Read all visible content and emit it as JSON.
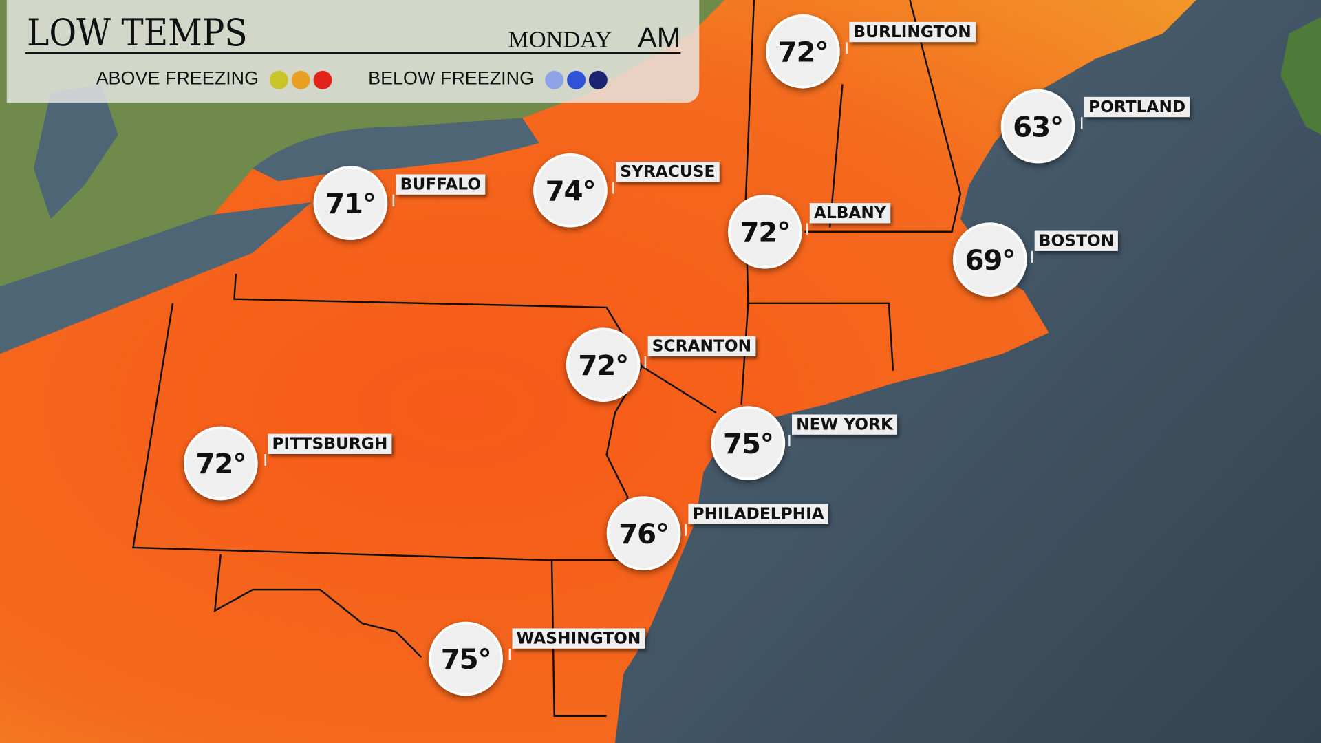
{
  "header": {
    "title": "LOW TEMPS",
    "day": "MONDAY",
    "period": "AM",
    "legend": {
      "above_label": "ABOVE FREEZING",
      "above_colors": [
        "#c8c42a",
        "#e8a024",
        "#e2231a"
      ],
      "below_label": "BELOW FREEZING",
      "below_colors": [
        "#8fa4e6",
        "#2f52d6",
        "#1a2470"
      ]
    }
  },
  "colors": {
    "land_warm": "#f4641c",
    "ocean": "#44586a",
    "canada": "#6f8a4a"
  },
  "cities": [
    {
      "name": "BURLINGTON",
      "temp": "72°"
    },
    {
      "name": "PORTLAND",
      "temp": "63°"
    },
    {
      "name": "BUFFALO",
      "temp": "71°"
    },
    {
      "name": "SYRACUSE",
      "temp": "74°"
    },
    {
      "name": "ALBANY",
      "temp": "72°"
    },
    {
      "name": "BOSTON",
      "temp": "69°"
    },
    {
      "name": "SCRANTON",
      "temp": "72°"
    },
    {
      "name": "PITTSBURGH",
      "temp": "72°"
    },
    {
      "name": "NEW YORK",
      "temp": "75°"
    },
    {
      "name": "PHILADELPHIA",
      "temp": "76°"
    },
    {
      "name": "WASHINGTON",
      "temp": "75°"
    }
  ]
}
